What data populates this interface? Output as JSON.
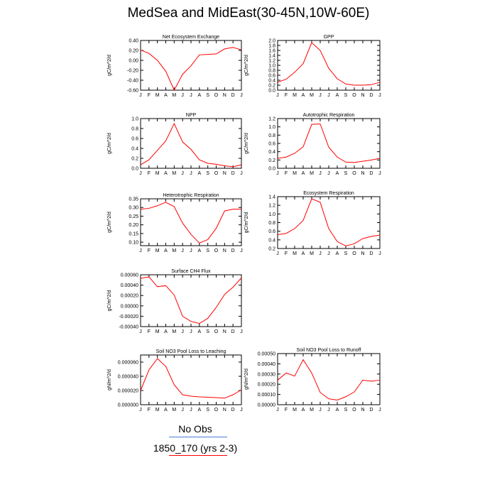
{
  "title": "MedSea and MidEast(30-45N,10W-60E)",
  "colors": {
    "model_line": "#ff0000",
    "obs_line": "#4a7fd0",
    "axis": "#000000"
  },
  "months": [
    "J",
    "F",
    "M",
    "A",
    "M",
    "J",
    "J",
    "A",
    "S",
    "O",
    "N",
    "D",
    "J"
  ],
  "legend": {
    "obs_label": "No Obs",
    "model_label": "1850_170 (yrs 2-3)"
  },
  "chart_data": [
    {
      "type": "line",
      "title": "Net Ecosystem Exchange",
      "ylabel": "gC/m^2/d",
      "ylim": [
        -0.6,
        0.4
      ],
      "yticks": [
        "0.40",
        "0.20",
        "0.00",
        "-0.20",
        "-0.40",
        "-0.60"
      ],
      "yvals": [
        0.4,
        0.2,
        0.0,
        -0.2,
        -0.4,
        -0.6
      ],
      "series": [
        {
          "values": [
            0.21,
            0.14,
            0.0,
            -0.22,
            -0.6,
            -0.28,
            -0.11,
            0.11,
            0.12,
            0.13,
            0.23,
            0.26,
            0.21
          ]
        }
      ]
    },
    {
      "type": "line",
      "title": "GPP",
      "ylabel": "gC/m^2/d",
      "ylim": [
        0.0,
        2.0
      ],
      "yticks": [
        "2.0",
        "1.8",
        "1.6",
        "1.4",
        "1.2",
        "1.0",
        "0.8",
        "0.6",
        "0.4",
        "0.2",
        "0.0"
      ],
      "yvals": [
        2.0,
        1.8,
        1.6,
        1.4,
        1.2,
        1.0,
        0.8,
        0.6,
        0.4,
        0.2,
        0.0
      ],
      "series": [
        {
          "values": [
            0.32,
            0.44,
            0.72,
            1.07,
            1.91,
            1.6,
            0.88,
            0.46,
            0.25,
            0.2,
            0.2,
            0.22,
            0.32
          ]
        }
      ]
    },
    {
      "type": "line",
      "title": "NPP",
      "ylabel": "gC/m^2/d",
      "ylim": [
        0.0,
        1.0
      ],
      "yticks": [
        "1.0",
        "0.8",
        "0.6",
        "0.4",
        "0.2",
        "0.0"
      ],
      "yvals": [
        1.0,
        0.8,
        0.6,
        0.4,
        0.2,
        0.0
      ],
      "series": [
        {
          "values": [
            0.07,
            0.17,
            0.36,
            0.55,
            0.9,
            0.53,
            0.38,
            0.17,
            0.1,
            0.08,
            0.05,
            0.03,
            0.07
          ]
        }
      ]
    },
    {
      "type": "line",
      "title": "Autotrophic Respiration",
      "ylabel": "gC/m^2/d",
      "ylim": [
        0.0,
        1.2
      ],
      "yticks": [
        "1.2",
        "1.0",
        "0.8",
        "0.6",
        "0.4",
        "0.2",
        "0.0"
      ],
      "yvals": [
        1.2,
        1.0,
        0.8,
        0.6,
        0.4,
        0.2,
        0.0
      ],
      "series": [
        {
          "values": [
            0.24,
            0.27,
            0.36,
            0.52,
            1.06,
            1.07,
            0.51,
            0.27,
            0.15,
            0.14,
            0.17,
            0.2,
            0.24
          ]
        }
      ]
    },
    {
      "type": "line",
      "title": "Heterotrophic Respiration",
      "ylabel": "gC/m^2/d",
      "ylim": [
        0.08,
        0.35
      ],
      "yticks": [
        "0.35",
        "0.30",
        "0.25",
        "0.20",
        "0.15",
        "0.10"
      ],
      "yvals": [
        0.35,
        0.3,
        0.25,
        0.2,
        0.15,
        0.1
      ],
      "series": [
        {
          "values": [
            0.29,
            0.295,
            0.31,
            0.33,
            0.305,
            0.21,
            0.145,
            0.095,
            0.115,
            0.18,
            0.28,
            0.29,
            0.29
          ]
        }
      ]
    },
    {
      "type": "line",
      "title": "Ecosystem Respiration",
      "ylabel": "gC/m^2/d",
      "ylim": [
        0.2,
        1.4
      ],
      "yticks": [
        "1.4",
        "1.2",
        "1.0",
        "0.8",
        "0.6",
        "0.4",
        "0.2"
      ],
      "yvals": [
        1.4,
        1.2,
        1.0,
        0.8,
        0.6,
        0.4,
        0.2
      ],
      "series": [
        {
          "values": [
            0.52,
            0.55,
            0.66,
            0.85,
            1.35,
            1.27,
            0.66,
            0.36,
            0.26,
            0.31,
            0.43,
            0.48,
            0.51
          ]
        }
      ]
    },
    {
      "type": "line",
      "title": "Surface CH4 Flux",
      "ylabel": "gC/m^2/d",
      "ylim": [
        -0.0004,
        0.0006
      ],
      "yticks": [
        "0.00060",
        "0.00040",
        "0.00020",
        "0.00000",
        "-0.00020",
        "-0.00040"
      ],
      "yvals": [
        0.0006,
        0.0004,
        0.0002,
        0.0,
        -0.0002,
        -0.0004
      ],
      "series": [
        {
          "values": [
            0.00053,
            0.00056,
            0.00037,
            0.00039,
            0.00021,
            -0.0002,
            -0.0003,
            -0.00034,
            -0.00024,
            -3e-05,
            0.00022,
            0.00036,
            0.00054
          ]
        }
      ]
    },
    {
      "type": "line",
      "title": "Soil NO3 Pool Loss to Leaching",
      "ylabel": "gN/m^2/d",
      "ylim": [
        0.0,
        7e-05
      ],
      "yticks": [
        "0.000060",
        "0.000040",
        "0.000020",
        "0.000000"
      ],
      "yvals": [
        6e-05,
        4e-05,
        2e-05,
        0.0
      ],
      "series": [
        {
          "values": [
            2e-05,
            4.9e-05,
            6.5e-05,
            5.4e-05,
            2.8e-05,
            1.4e-05,
            1.2e-05,
            1.1e-05,
            1.05e-05,
            1e-05,
            9.2e-06,
            1.4e-05,
            2.1e-05
          ]
        }
      ]
    },
    {
      "type": "line",
      "title": "Soil NO3 Pool Loss to Runoff",
      "ylabel": "gN/m^2/d",
      "ylim": [
        0.0,
        0.0005
      ],
      "yticks": [
        "0.00050",
        "0.00040",
        "0.00030",
        "0.00020",
        "0.00010",
        "0.00000"
      ],
      "yvals": [
        0.0005,
        0.0004,
        0.0003,
        0.0002,
        0.0001,
        0.0
      ],
      "series": [
        {
          "values": [
            0.00024,
            0.00031,
            0.00028,
            0.00044,
            0.00031,
            0.00012,
            5.8e-05,
            4.5e-05,
            7.8e-05,
            0.000125,
            0.00024,
            0.00023,
            0.00024
          ]
        }
      ]
    }
  ]
}
